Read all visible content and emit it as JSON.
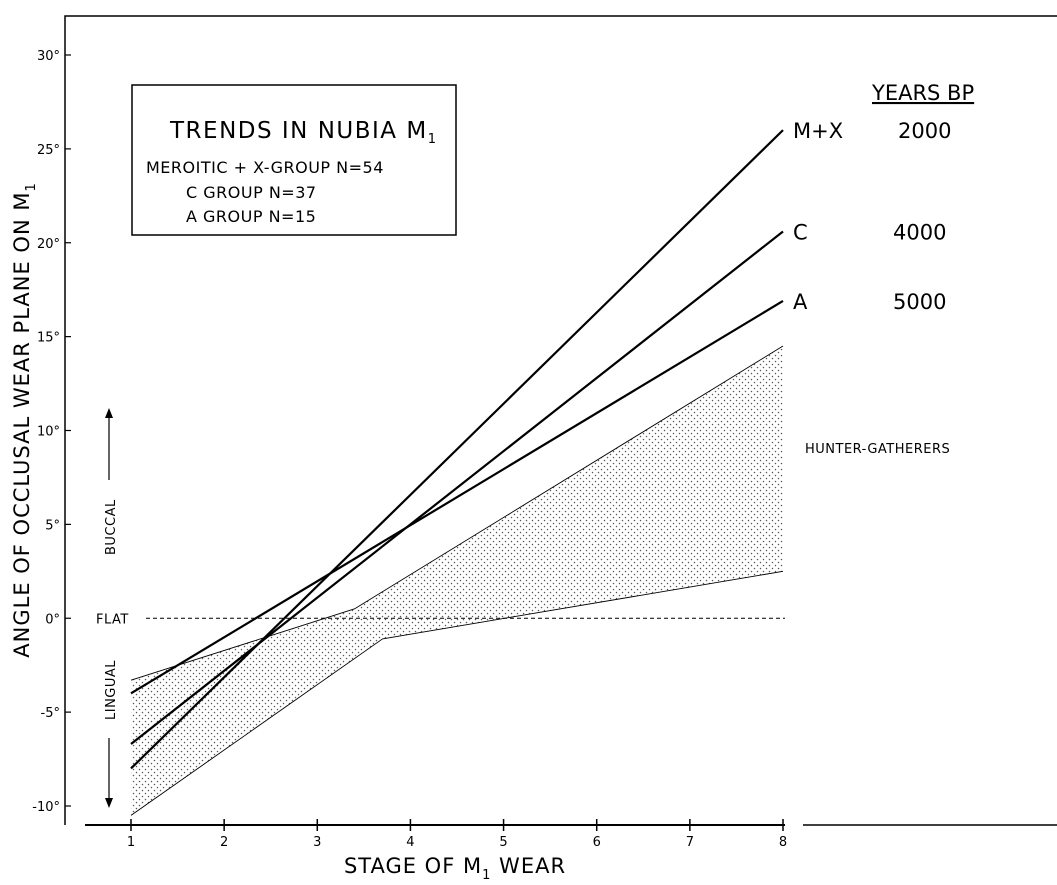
{
  "chart_data": {
    "type": "line",
    "xlabel": "STAGE OF M",
    "xlabel_sub": "1",
    "xlabel_end": " WEAR",
    "ylabel": "ANGLE OF OCCLUSAL WEAR PLANE ON M",
    "ylabel_sub": "1",
    "xlim": [
      1,
      8
    ],
    "ylim": [
      -10,
      30
    ],
    "x_ticks": [
      1,
      2,
      3,
      4,
      5,
      6,
      7,
      8
    ],
    "x_tick_labels": [
      "1",
      "2",
      "3",
      "4",
      "5",
      "6",
      "7",
      "8"
    ],
    "y_ticks": [
      -10,
      -5,
      0,
      5,
      10,
      15,
      20,
      25,
      30
    ],
    "y_tick_labels": [
      "-10°",
      "-5°",
      "0°",
      "5°",
      "10°",
      "15°",
      "20°",
      "25°",
      "30°"
    ],
    "flat_label": "FLAT",
    "buccal_label": "BUCCAL",
    "lingual_label": "LINGUAL",
    "legend": {
      "title": "TRENDS IN NUBIA  M",
      "title_sub": "1",
      "lines": [
        "MEROITIC + X-GROUP N=54",
        "C GROUP  N=37",
        "A GROUP  N=15"
      ]
    },
    "years_header": "YEARS  BP",
    "series": [
      {
        "name": "M+X",
        "years": "2000",
        "x": [
          1,
          8
        ],
        "y": [
          -8.0,
          26.0
        ]
      },
      {
        "name": "C",
        "years": "4000",
        "x": [
          1,
          8
        ],
        "y": [
          -6.7,
          20.6
        ]
      },
      {
        "name": "A",
        "years": "5000",
        "x": [
          1,
          8
        ],
        "y": [
          -4.0,
          16.9
        ]
      }
    ],
    "band": {
      "name": "HUNTER-GATHERERS",
      "upper": {
        "x": [
          1,
          3.4,
          8
        ],
        "y": [
          -3.3,
          0.5,
          14.5
        ]
      },
      "lower": {
        "x": [
          1,
          3.7,
          8
        ],
        "y": [
          -10.5,
          -1.1,
          2.5
        ]
      }
    }
  }
}
